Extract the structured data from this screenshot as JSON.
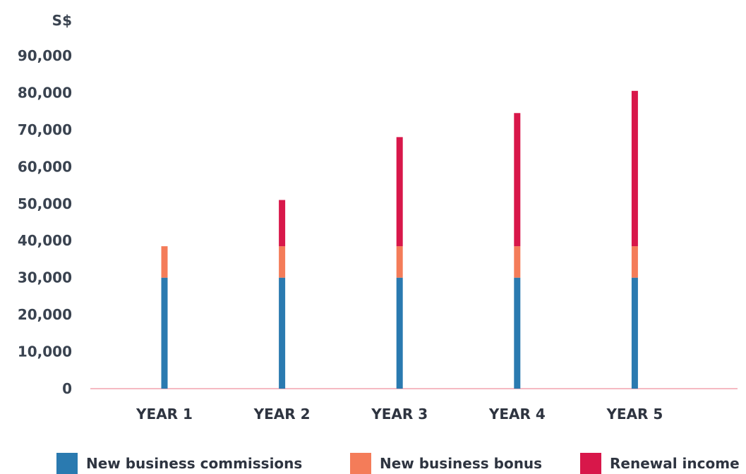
{
  "chart_data": {
    "type": "bar",
    "stacked": true,
    "unit_label": "S$",
    "categories": [
      "YEAR 1",
      "YEAR 2",
      "YEAR 3",
      "YEAR 4",
      "YEAR 5"
    ],
    "series": [
      {
        "name": "New business commissions",
        "color": "#2a7ab0",
        "values": [
          30000,
          30000,
          30000,
          30000,
          30000
        ]
      },
      {
        "name": "New business bonus",
        "color": "#f47c59",
        "values": [
          8500,
          8500,
          8500,
          8500,
          8500
        ]
      },
      {
        "name": "Renewal income",
        "color": "#d8174a",
        "values": [
          0,
          12500,
          29500,
          36000,
          42000
        ]
      }
    ],
    "ylim": [
      0,
      90000
    ],
    "yticks": [
      0,
      10000,
      20000,
      30000,
      40000,
      50000,
      60000,
      70000,
      80000,
      90000
    ],
    "ytick_labels": [
      "0",
      "10,000",
      "20,000",
      "30,000",
      "40,000",
      "50,000",
      "60,000",
      "70,000",
      "80,000",
      "90,000"
    ],
    "baseline_color": "#f2a3ad",
    "grid": false,
    "legend_position": "bottom"
  }
}
